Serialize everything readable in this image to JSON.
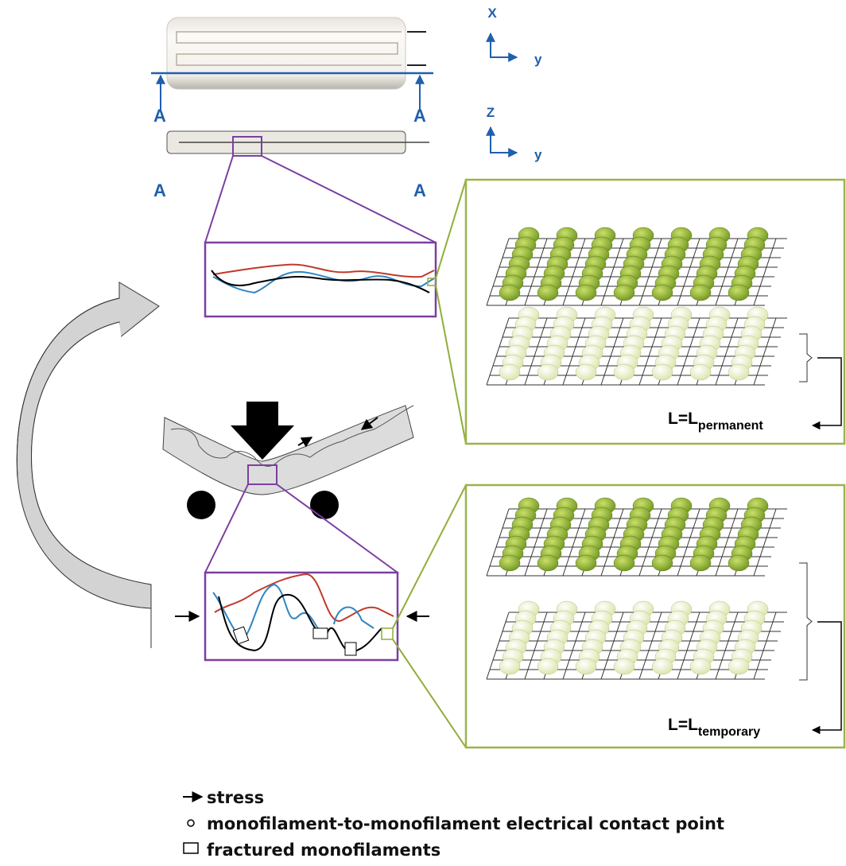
{
  "axes": [
    {
      "vertical": "X",
      "horizontal": "y"
    },
    {
      "vertical": "Z",
      "horizontal": "y"
    }
  ],
  "section_labels": [
    "A",
    "A",
    "A",
    "A"
  ],
  "panels": [
    {
      "label": "L=L",
      "subscript": "permanent"
    },
    {
      "label": "L=L",
      "subscript": "temporary"
    }
  ],
  "legend": [
    {
      "label": "stress"
    },
    {
      "label": "monofilament-to-monofilament electrical contact point"
    },
    {
      "label": "fractured monofilaments"
    }
  ]
}
